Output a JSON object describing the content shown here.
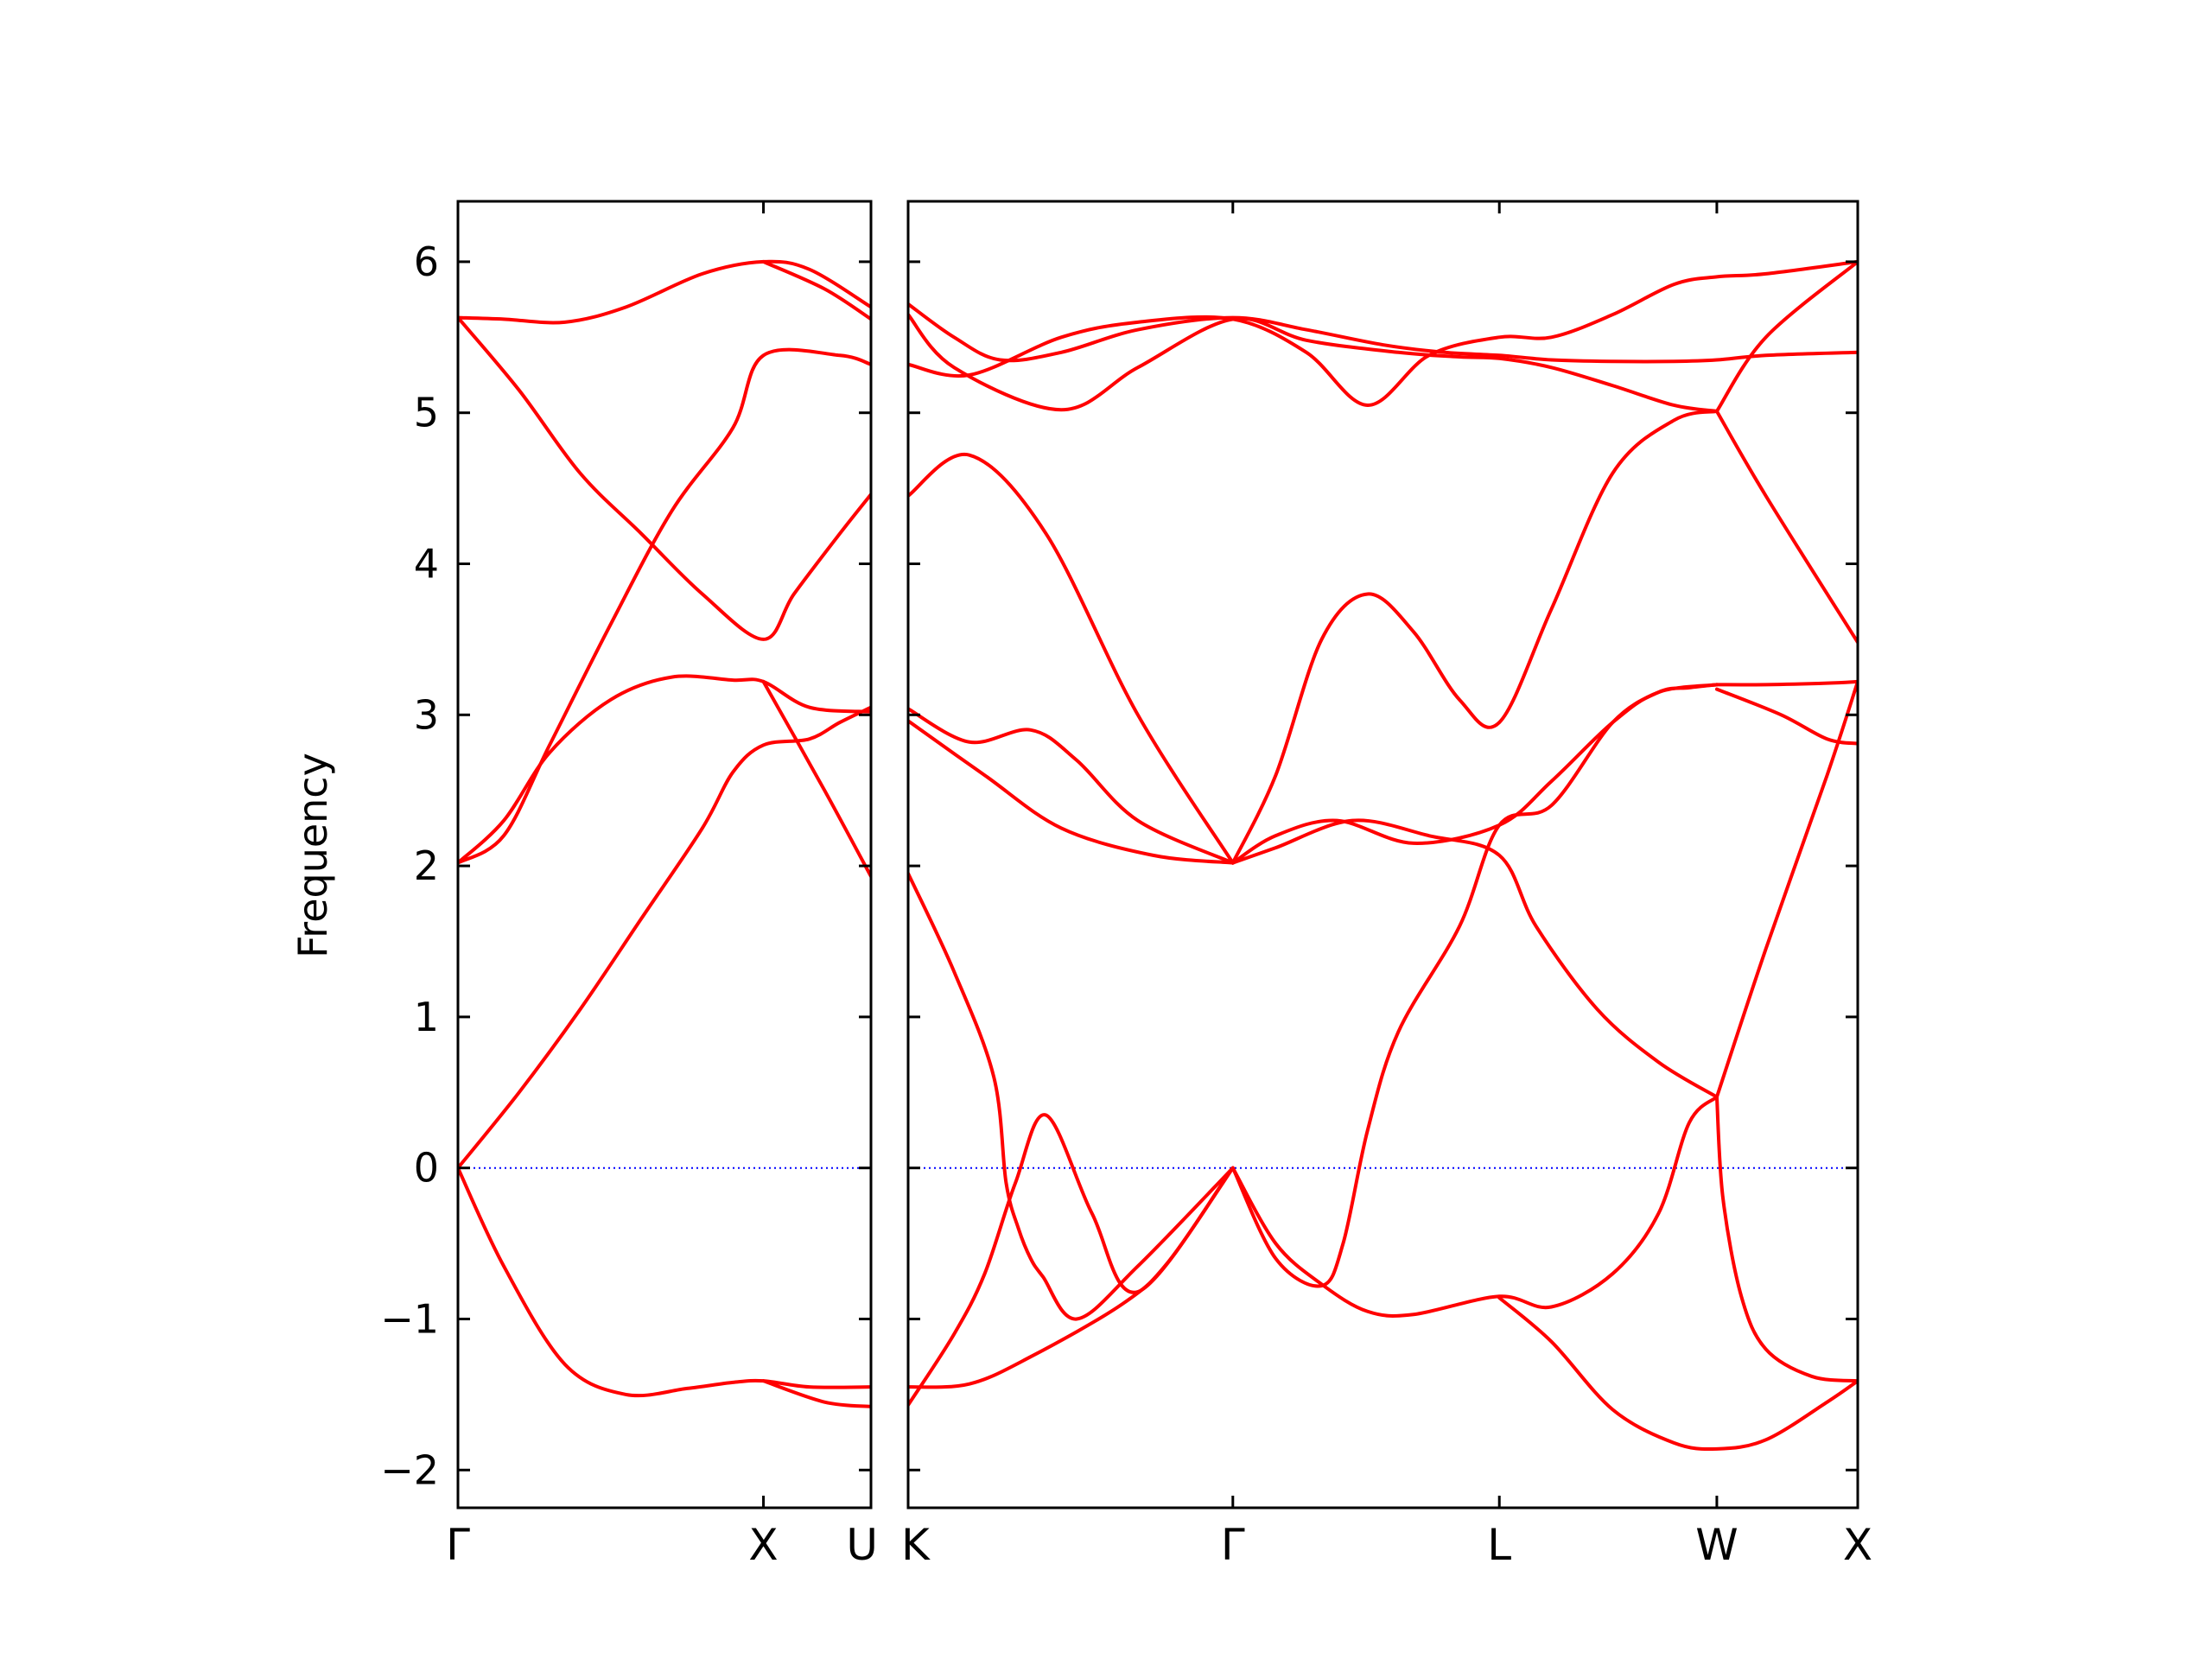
{
  "chart_data": {
    "type": "line",
    "ylabel": "Frequency",
    "ylim": [
      -2.25,
      6.4
    ],
    "yticks": [
      -2,
      -1,
      0,
      1,
      2,
      3,
      4,
      5,
      6
    ],
    "ytick_labels": [
      "−2",
      "−1",
      "0",
      "1",
      "2",
      "3",
      "4",
      "5",
      "6"
    ],
    "zero_line_color": "#0000ff",
    "band_color": "#ff0000",
    "grid": false,
    "panels": [
      {
        "xlim": [
          0,
          1.352
        ],
        "xticks": [
          0,
          1.0,
          1.352
        ],
        "xtick_labels": [
          "Γ",
          "X",
          "U"
        ],
        "bands": [
          {
            "x": [
              0,
              0.15,
              0.35,
              0.55,
              0.75,
              0.9,
              1.0,
              1.15,
              1.352
            ],
            "y": [
              0.0,
              -0.65,
              -1.3,
              -1.5,
              -1.46,
              -1.42,
              -1.41,
              -1.45,
              -1.45
            ]
          },
          {
            "x": [
              0,
              0.2,
              0.4,
              0.6,
              0.8,
              0.9,
              1.0,
              1.15,
              1.25,
              1.352
            ],
            "y": [
              0.0,
              0.5,
              1.05,
              1.65,
              2.25,
              2.62,
              2.8,
              2.84,
              2.95,
              3.05
            ]
          },
          {
            "x": [
              0,
              0.15,
              0.3,
              0.5,
              0.7,
              0.9,
              1.0,
              1.15,
              1.352
            ],
            "y": [
              2.02,
              2.3,
              2.75,
              3.1,
              3.25,
              3.23,
              3.22,
              3.05,
              3.02
            ]
          },
          {
            "x": [
              0,
              0.15,
              0.3,
              0.5,
              0.7,
              0.9,
              1.0,
              1.25,
              1.352
            ],
            "y": [
              2.02,
              2.2,
              2.8,
              3.6,
              4.35,
              4.9,
              5.38,
              5.38,
              5.32
            ]
          },
          {
            "x": [
              0,
              0.2,
              0.4,
              0.6,
              0.8,
              1.0,
              1.1,
              1.25,
              1.352
            ],
            "y": [
              5.63,
              5.15,
              4.6,
              4.2,
              3.8,
              3.5,
              3.8,
              4.2,
              4.46
            ]
          },
          {
            "x": [
              0,
              0.15,
              0.35,
              0.55,
              0.8,
              1.0,
              1.15,
              1.352
            ],
            "y": [
              5.63,
              5.62,
              5.6,
              5.7,
              5.92,
              6.0,
              5.95,
              5.7
            ]
          },
          {
            "x": [
              1.0,
              1.2,
              1.352
            ],
            "y": [
              6.0,
              5.82,
              5.62
            ]
          },
          {
            "x": [
              1.0,
              1.2,
              1.352
            ],
            "y": [
              3.22,
              2.5,
              1.93
            ]
          },
          {
            "x": [
              1.0,
              1.2,
              1.352
            ],
            "y": [
              -1.41,
              -1.55,
              -1.58
            ]
          }
        ]
      },
      {
        "xlim": [
          0,
          3.1
        ],
        "xticks": [
          0,
          1.06,
          1.93,
          2.64,
          3.1
        ],
        "xtick_labels": [
          "K",
          "Γ",
          "L",
          "W",
          "X"
        ],
        "bands": [
          {
            "x": [
              0,
              0.15,
              0.3,
              0.5,
              0.75,
              1.06,
              1.3,
              1.55,
              1.75,
              1.93,
              2.1,
              2.3,
              2.5,
              2.64,
              2.8,
              3.1
            ],
            "y": [
              5.72,
              5.5,
              5.35,
              5.4,
              5.55,
              5.63,
              5.55,
              5.45,
              5.4,
              5.38,
              5.35,
              5.34,
              5.34,
              5.35,
              5.38,
              5.4
            ]
          },
          {
            "x": [
              0,
              0.2,
              0.5,
              0.75,
              1.06,
              1.3,
              1.5,
              1.7,
              1.93,
              2.1,
              2.3,
              2.5,
              2.64,
              2.8,
              3.1
            ],
            "y": [
              5.32,
              5.25,
              5.5,
              5.6,
              5.62,
              5.4,
              5.05,
              5.38,
              5.5,
              5.5,
              5.65,
              5.85,
              5.9,
              5.92,
              6.0
            ]
          },
          {
            "x": [
              0,
              0.15,
              0.5,
              0.75,
              1.06,
              1.3,
              1.6,
              1.8,
              1.93,
              2.1,
              2.3,
              2.5,
              2.64
            ],
            "y": [
              5.65,
              5.3,
              5.02,
              5.3,
              5.62,
              5.48,
              5.4,
              5.37,
              5.36,
              5.3,
              5.18,
              5.05,
              5.01
            ]
          },
          {
            "x": [
              0.0,
              0.2,
              0.45,
              0.75,
              1.06
            ],
            "y": [
              4.45,
              4.72,
              4.2,
              3.0,
              2.02
            ]
          },
          {
            "x": [
              0.0,
              0.2,
              0.4,
              0.55,
              0.75,
              1.06
            ],
            "y": [
              3.04,
              2.82,
              2.9,
              2.7,
              2.3,
              2.02
            ]
          },
          {
            "x": [
              0.0,
              0.25,
              0.5,
              0.8,
              1.06
            ],
            "y": [
              2.96,
              2.6,
              2.25,
              2.07,
              2.02
            ]
          },
          {
            "x": [
              1.06,
              1.2,
              1.35,
              1.5,
              1.65,
              1.8,
              1.93,
              2.1,
              2.3,
              2.5,
              2.64
            ],
            "y": [
              2.02,
              2.6,
              3.5,
              3.8,
              3.55,
              3.1,
              2.95,
              3.7,
              4.6,
              4.95,
              5.01
            ]
          },
          {
            "x": [
              1.06,
              1.2,
              1.4,
              1.65,
              1.93,
              2.1,
              2.3,
              2.45,
              2.64
            ],
            "y": [
              2.02,
              2.2,
              2.3,
              2.15,
              2.27,
              2.56,
              2.95,
              3.15,
              3.2
            ]
          },
          {
            "x": [
              1.06,
              1.2,
              1.45,
              1.7,
              1.93,
              2.05,
              2.25,
              2.45,
              2.64
            ],
            "y": [
              2.02,
              2.12,
              2.3,
              2.2,
              2.07,
              1.6,
              1.05,
              0.7,
              0.47
            ]
          },
          {
            "x": [
              2.64,
              2.8,
              3.1
            ],
            "y": [
              5.01,
              5.5,
              6.0
            ]
          },
          {
            "x": [
              2.64,
              2.8,
              3.1
            ],
            "y": [
              5.01,
              4.45,
              3.48
            ]
          },
          {
            "x": [
              2.64,
              2.8,
              3.0,
              3.1
            ],
            "y": [
              3.2,
              3.2,
              3.21,
              3.22
            ]
          },
          {
            "x": [
              2.64,
              2.85,
              3.0,
              3.1
            ],
            "y": [
              3.17,
              3.0,
              2.84,
              2.81
            ]
          },
          {
            "x": [
              2.64,
              2.8,
              3.0,
              3.1
            ],
            "y": [
              0.47,
              1.45,
              2.6,
              3.22
            ]
          },
          {
            "x": [
              0.0,
              0.15,
              0.28,
              0.32,
              0.36,
              0.4,
              0.44,
              0.55,
              0.75,
              1.06
            ],
            "y": [
              1.95,
              1.3,
              0.6,
              -0.1,
              -0.4,
              -0.6,
              -0.72,
              -1.0,
              -0.65,
              0.0
            ]
          },
          {
            "x": [
              0.0,
              0.15,
              0.25,
              0.35,
              0.45,
              0.6,
              0.75,
              1.06
            ],
            "y": [
              -1.57,
              -1.1,
              -0.7,
              -0.1,
              0.35,
              -0.3,
              -0.82,
              0.0
            ]
          },
          {
            "x": [
              0.0,
              0.2,
              0.4,
              0.7,
              0.85,
              1.06
            ],
            "y": [
              -1.45,
              -1.43,
              -1.25,
              -0.9,
              -0.62,
              0.0
            ]
          },
          {
            "x": [
              1.06,
              1.2,
              1.35,
              1.42,
              1.5,
              1.6,
              1.8,
              1.93,
              2.1,
              2.3,
              2.45,
              2.55,
              2.64
            ],
            "y": [
              0.0,
              -0.6,
              -0.78,
              -0.5,
              0.25,
              0.9,
              1.6,
              2.27,
              2.4,
              2.95,
              3.15,
              3.18,
              3.2
            ]
          },
          {
            "x": [
              1.06,
              1.2,
              1.35,
              1.5,
              1.65,
              1.93,
              2.1,
              2.3,
              2.45,
              2.55,
              2.64
            ],
            "y": [
              0.0,
              -0.5,
              -0.77,
              -0.95,
              -0.97,
              -0.85,
              -0.92,
              -0.7,
              -0.3,
              0.3,
              0.47
            ]
          },
          {
            "x": [
              1.93,
              2.1,
              2.3,
              2.5,
              2.64,
              2.8,
              3.0,
              3.1
            ],
            "y": [
              -0.86,
              -1.15,
              -1.6,
              -1.82,
              -1.86,
              -1.8,
              -1.55,
              -1.41
            ]
          },
          {
            "x": [
              2.64,
              2.66,
              2.72,
              2.8,
              2.95,
              3.1
            ],
            "y": [
              0.47,
              -0.2,
              -0.85,
              -1.2,
              -1.38,
              -1.41
            ]
          }
        ]
      }
    ]
  }
}
